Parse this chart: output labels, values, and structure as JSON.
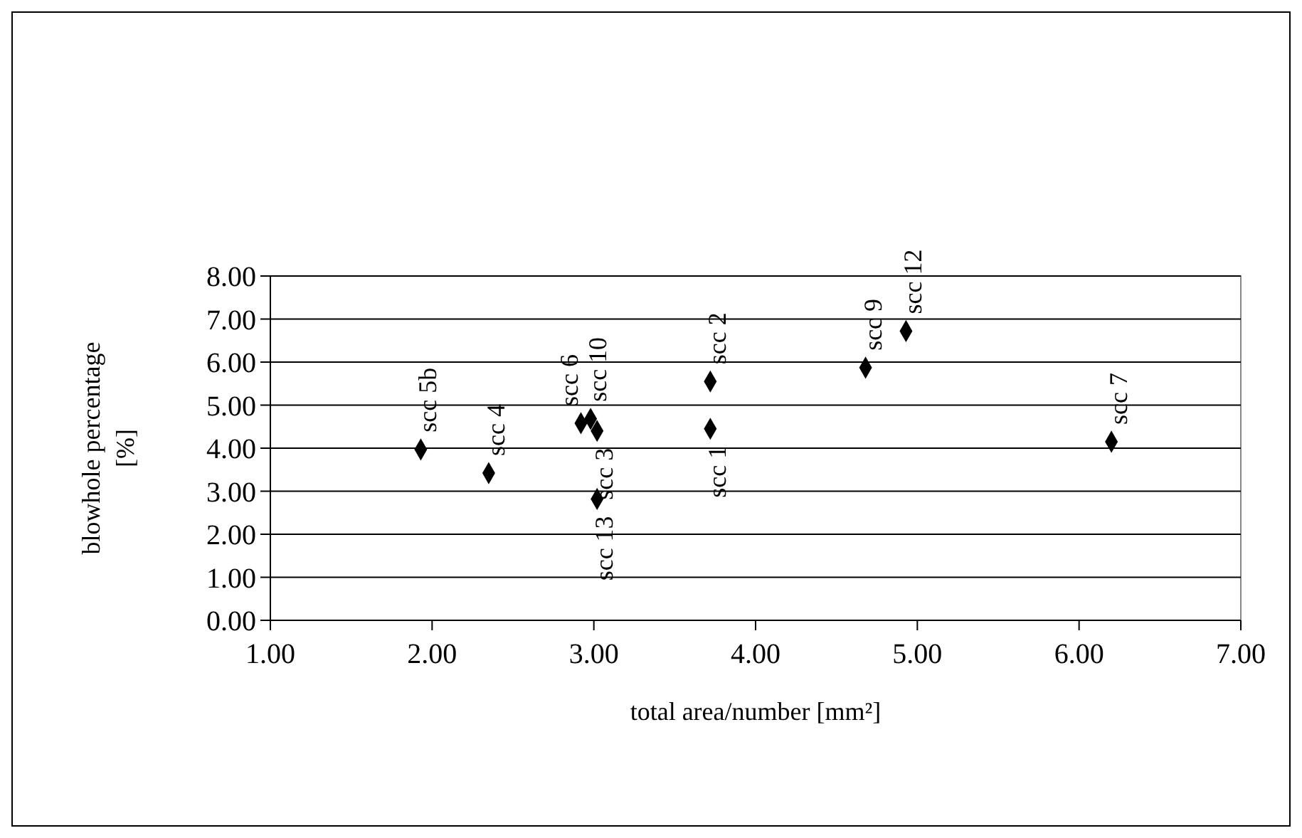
{
  "chart_data": {
    "type": "scatter",
    "xlabel": "total area/number [mm²]",
    "ylabel": "blowhole percentage [%]",
    "x": [
      1.93,
      2.35,
      2.92,
      2.98,
      3.02,
      3.02,
      3.72,
      3.72,
      4.68,
      4.93,
      6.2
    ],
    "series": [
      {
        "color": "#000000",
        "values": [
          3.97,
          3.42,
          4.58,
          4.68,
          4.4,
          2.82,
          4.45,
          5.55,
          5.87,
          6.72,
          4.15
        ]
      }
    ],
    "xlim": [
      1,
      7
    ],
    "xticks": [
      {
        "value": 1,
        "label": "1.00"
      },
      {
        "value": 2,
        "label": "2.00"
      },
      {
        "value": 3,
        "label": "3.00"
      },
      {
        "value": 4,
        "label": "4.00"
      },
      {
        "value": 5,
        "label": "5.00"
      },
      {
        "value": 6,
        "label": "6.00"
      },
      {
        "value": 7,
        "label": "7.00"
      }
    ],
    "ylim": [
      0,
      8
    ],
    "yticks": [
      {
        "value": 0,
        "label": "0.00"
      },
      {
        "value": 1,
        "label": "1.00"
      },
      {
        "value": 2,
        "label": "2.00"
      },
      {
        "value": 3,
        "label": "3.00"
      },
      {
        "value": 4,
        "label": "4.00"
      },
      {
        "value": 5,
        "label": "5.00"
      },
      {
        "value": 6,
        "label": "6.00"
      },
      {
        "value": 7,
        "label": "7.00"
      },
      {
        "value": 8,
        "label": "8.00"
      }
    ],
    "grid": "y",
    "marker": "diamond",
    "annotations": [
      {
        "text": "scc 5b",
        "x": 1.93,
        "y": 3.97
      },
      {
        "text": "scc 4",
        "x": 2.35,
        "y": 3.42
      },
      {
        "text": "scc 6",
        "x": 2.92,
        "y": 4.58
      },
      {
        "text": "scc 10",
        "x": 2.98,
        "y": 4.68
      },
      {
        "text": "scc 3",
        "x": 3.02,
        "y": 4.4
      },
      {
        "text": "scc 13",
        "x": 3.02,
        "y": 2.82
      },
      {
        "text": "scc 1",
        "x": 3.72,
        "y": 4.45
      },
      {
        "text": "scc 2",
        "x": 3.72,
        "y": 5.55
      },
      {
        "text": "scc 9",
        "x": 4.68,
        "y": 5.87
      },
      {
        "text": "scc 12",
        "x": 4.93,
        "y": 6.72
      },
      {
        "text": "scc 7",
        "x": 6.2,
        "y": 4.15
      }
    ]
  }
}
